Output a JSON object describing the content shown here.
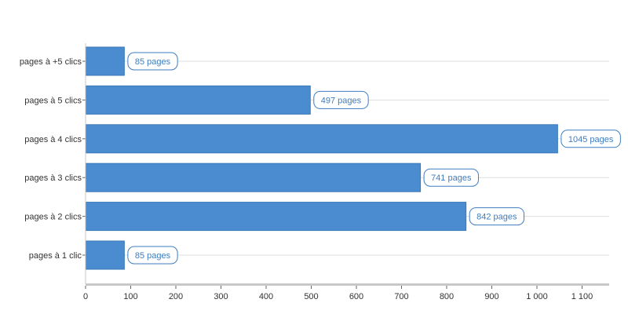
{
  "chart_data": {
    "type": "bar",
    "orientation": "horizontal",
    "categories": [
      "pages à 1 clic",
      "pages à 2 clics",
      "pages à 3 clics",
      "pages à 4 clics",
      "pages à 5 clics",
      "pages à +5 clics"
    ],
    "values": [
      85,
      842,
      741,
      1045,
      497,
      85
    ],
    "data_labels": [
      "85 pages",
      "842 pages",
      "741 pages",
      "1045 pages",
      "497 pages",
      "85 pages"
    ],
    "x_ticks": [
      0,
      100,
      200,
      300,
      400,
      500,
      600,
      700,
      800,
      900,
      1000,
      1100
    ],
    "x_tick_labels": [
      "0",
      "100",
      "200",
      "300",
      "400",
      "500",
      "600",
      "700",
      "800",
      "900",
      "1 000",
      "1 100"
    ],
    "xlim": [
      0,
      1160
    ],
    "title": "",
    "xlabel": "",
    "ylabel": "",
    "grid": "horizontal",
    "legend": "none",
    "colors": {
      "bar": "#4a8ccf",
      "bar_border": "#3a78b8",
      "label_border": "#3e7dc0",
      "label_text": "#3e7dc0",
      "grid": "#dddddd",
      "axis": "#c8c8c8"
    }
  }
}
